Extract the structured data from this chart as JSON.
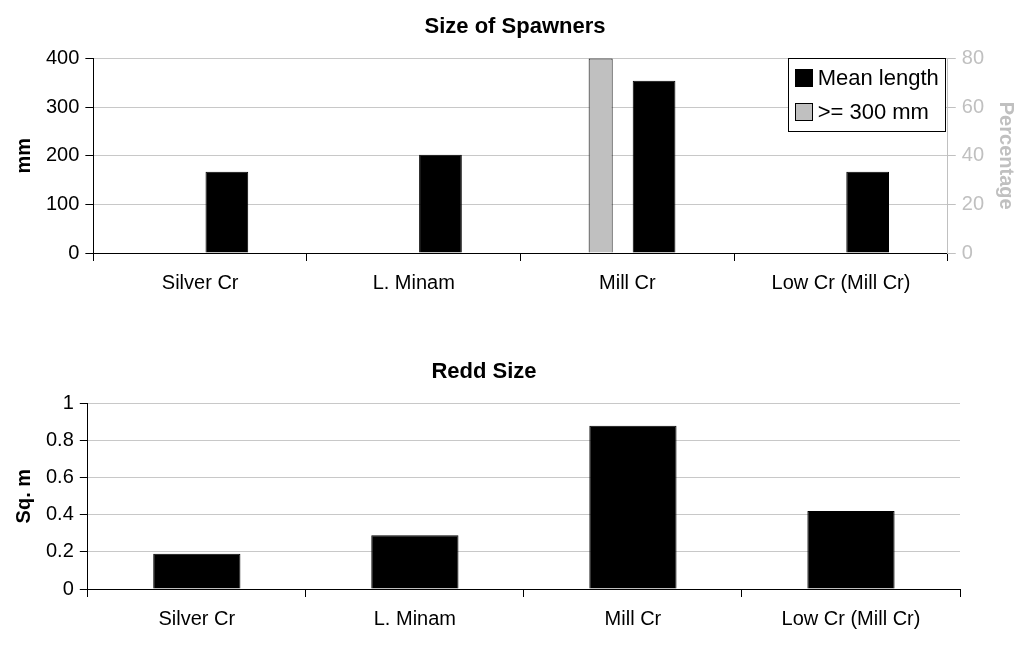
{
  "chart_data": [
    {
      "type": "bar",
      "title": "Size of Spawners",
      "ylabel": "mm",
      "y2label": "Percentage",
      "categories": [
        "Silver Cr",
        "L. Minam",
        "Mill Cr",
        "Low Cr (Mill Cr)"
      ],
      "series": [
        {
          "name": "Mean length",
          "color": "#000000",
          "values": [
            167,
            202,
            354,
            167
          ]
        },
        {
          "name": ">= 300 mm",
          "color": "#c0c0c0",
          "axis": "y2",
          "values": [
            null,
            null,
            80,
            null
          ]
        }
      ],
      "ylim": [
        0,
        400
      ],
      "yticks": [
        0,
        100,
        200,
        300,
        400
      ],
      "y2lim": [
        0,
        80
      ],
      "y2ticks": [
        0,
        20,
        40,
        60,
        80
      ],
      "grid": "y",
      "legend": "top right"
    },
    {
      "type": "bar",
      "title": "Redd Size",
      "ylabel": "Sq. m",
      "categories": [
        "Silver Cr",
        "L. Minam",
        "Mill Cr",
        "Low Cr (Mill Cr)"
      ],
      "series": [
        {
          "color": "#000000",
          "values": [
            0.19,
            0.29,
            0.88,
            0.42
          ]
        }
      ],
      "ylim": [
        0,
        1
      ],
      "yticks": [
        0,
        0.2,
        0.4,
        0.6,
        0.8,
        1
      ],
      "grid": "y"
    }
  ]
}
